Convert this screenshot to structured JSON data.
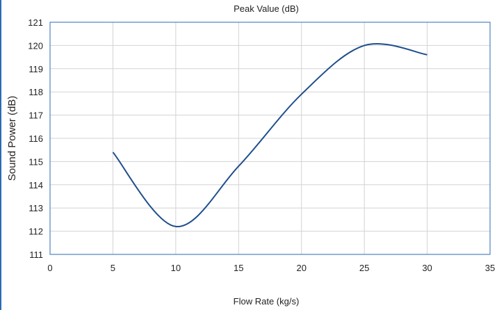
{
  "chart_data": {
    "type": "line",
    "title": "Peak Value (dB)",
    "xlabel": "Flow Rate (kg/s)",
    "ylabel": "Sound Power (dB)",
    "xlim": [
      0,
      35
    ],
    "ylim": [
      111,
      121
    ],
    "xticks": [
      0,
      5,
      10,
      15,
      20,
      25,
      30,
      35
    ],
    "yticks": [
      111,
      112,
      113,
      114,
      115,
      116,
      117,
      118,
      119,
      120,
      121
    ],
    "grid": true,
    "series": [
      {
        "x": [
          5,
          10,
          15,
          20,
          25,
          30
        ],
        "y": [
          115.4,
          112.2,
          114.8,
          117.9,
          120.0,
          119.6
        ]
      }
    ],
    "colors": {
      "line": "#1f4e8c",
      "grid": "#d3d3d3",
      "frame": "#2a6bb5",
      "left_border": "#2a6bb5"
    }
  }
}
